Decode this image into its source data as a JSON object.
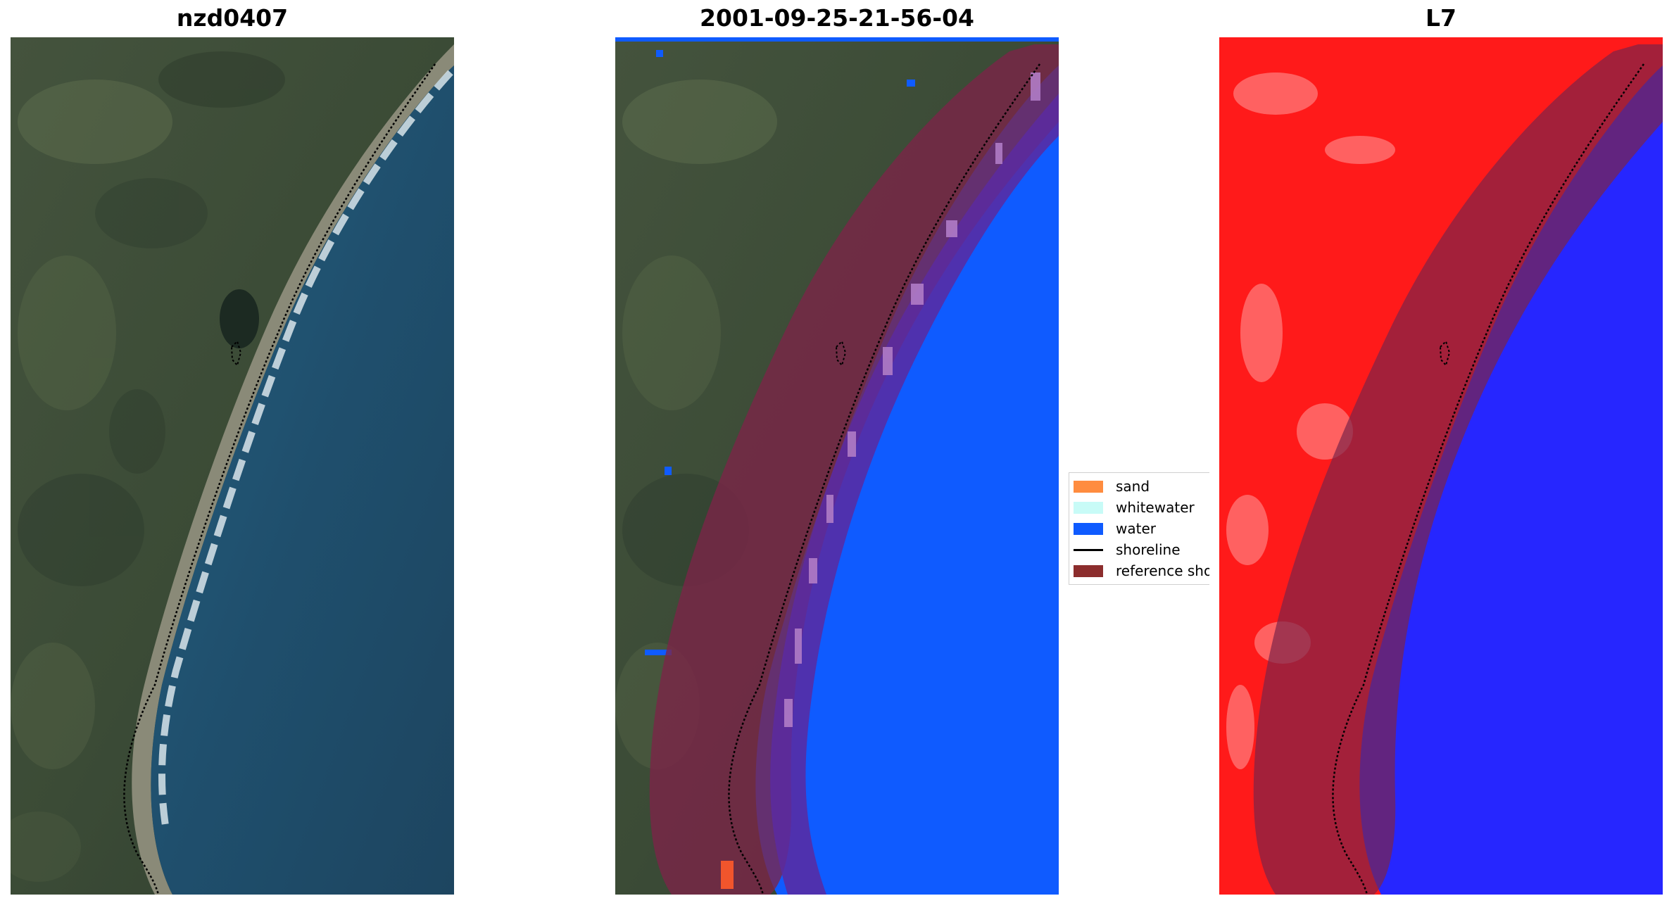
{
  "panels": [
    {
      "title": "nzd0407"
    },
    {
      "title": "2001-09-25-21-56-04"
    },
    {
      "title": "L7"
    }
  ],
  "legend": {
    "items": [
      {
        "label": "sand",
        "color": "#ff8c3f"
      },
      {
        "label": "whitewater",
        "color": "#c8fbf7"
      },
      {
        "label": "water",
        "color": "#0f5bff"
      },
      {
        "label": "shoreline",
        "color": "#000000"
      },
      {
        "label": "reference shoreline buffer",
        "color": "#8c2d2d"
      }
    ]
  },
  "colors": {
    "land": "#3a4a36",
    "sea": "#1f4f6e",
    "water_class": "#0f5bff",
    "buffer": "#7c2448",
    "index_land": "#ff1a1a",
    "index_water": "#2626ff"
  }
}
